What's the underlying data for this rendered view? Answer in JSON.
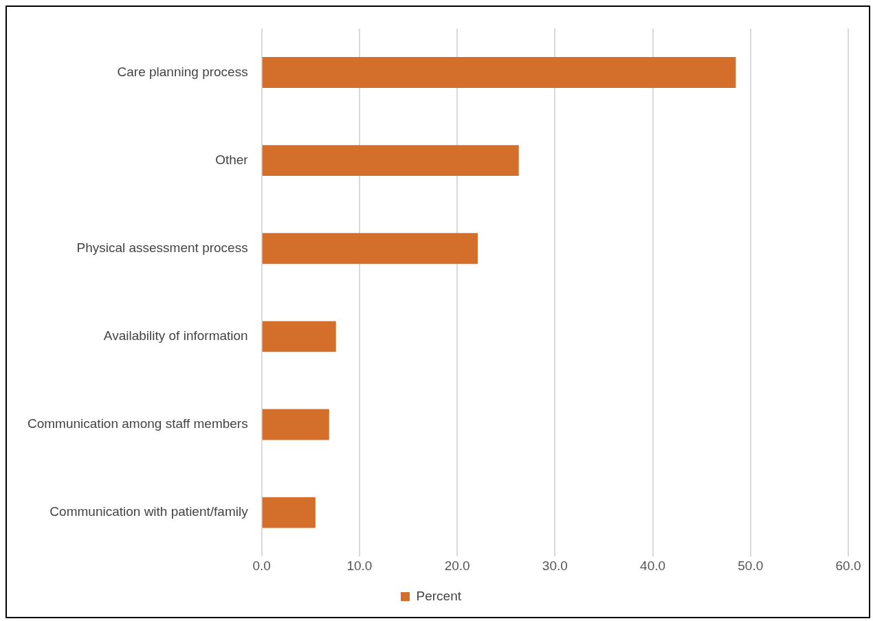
{
  "chart_data": {
    "type": "bar",
    "orientation": "horizontal",
    "categories": [
      "Care planning process",
      "Other",
      "Physical assessment process",
      "Availability of information",
      "Communication among staff members",
      "Communication with patient/family"
    ],
    "series": [
      {
        "name": "Percent",
        "color": "#d36f2b",
        "values": [
          48.5,
          26.3,
          22.1,
          7.6,
          6.9,
          5.5
        ]
      }
    ],
    "xlim": [
      0,
      60
    ],
    "xticks": [
      {
        "value": 0,
        "label": "0.0"
      },
      {
        "value": 10,
        "label": "10.0"
      },
      {
        "value": 20,
        "label": "20.0"
      },
      {
        "value": 30,
        "label": "30.0"
      },
      {
        "value": 40,
        "label": "40.0"
      },
      {
        "value": 50,
        "label": "50.0"
      },
      {
        "value": 60,
        "label": "60.0"
      }
    ],
    "grid": "x",
    "legend": "bottom"
  }
}
